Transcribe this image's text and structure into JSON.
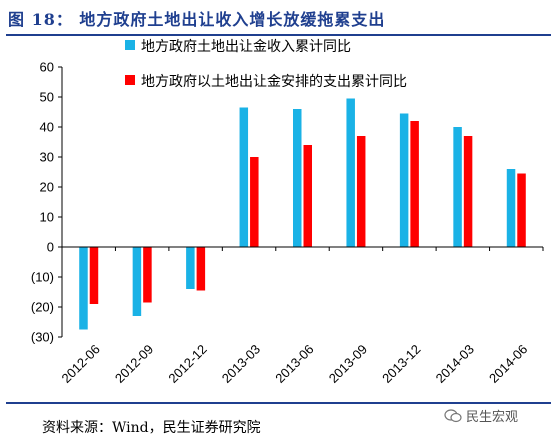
{
  "figure": {
    "title": "图 18： 地方政府土地出让收入增长放缓拖累支出",
    "source": "资料来源：Wind，民生证券研究院",
    "watermark": "民生宏观"
  },
  "chart_data": {
    "type": "bar",
    "categories": [
      "2012-06",
      "2012-09",
      "2012-12",
      "2013-03",
      "2013-06",
      "2013-09",
      "2013-12",
      "2014-03",
      "2014-06"
    ],
    "series": [
      {
        "name": "地方政府土地出让金收入累计同比",
        "color": "#1ab2e6",
        "values": [
          -27.5,
          -23,
          -14,
          46.5,
          46,
          49.5,
          44.5,
          40,
          26
        ]
      },
      {
        "name": "地方政府以土地出让金安排的支出累计同比",
        "color": "#ff0000",
        "values": [
          -19,
          -18.5,
          -14.5,
          30,
          34,
          37,
          42,
          37,
          24.5
        ]
      }
    ],
    "yticks": [
      "(30)",
      "(20)",
      "(10)",
      "0",
      "10",
      "20",
      "30",
      "40",
      "50",
      "60"
    ],
    "ytick_values": [
      -30,
      -20,
      -10,
      0,
      10,
      20,
      30,
      40,
      50,
      60
    ],
    "ylim": [
      -30,
      60
    ],
    "legend": "top",
    "grid": false
  }
}
